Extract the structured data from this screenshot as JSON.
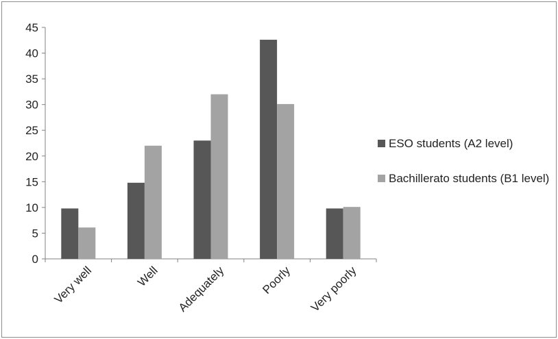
{
  "chart_data": {
    "type": "bar",
    "categories": [
      "Very well",
      "Well",
      "Adequately",
      "Poorly",
      "Very poorly"
    ],
    "series": [
      {
        "name": "ESO students (A2 level)",
        "values": [
          9.8,
          14.8,
          23,
          42.6,
          9.8
        ],
        "color": "#575757"
      },
      {
        "name": "Bachillerato students (B1 level)",
        "values": [
          6.1,
          22,
          32,
          30.1,
          10.1
        ],
        "color": "#a3a3a3"
      }
    ],
    "ylim": [
      0,
      45
    ],
    "yticks": [
      "0",
      "5",
      "10",
      "15",
      "20",
      "25",
      "30",
      "35",
      "40",
      "45"
    ],
    "title": "",
    "xlabel": "",
    "ylabel": "",
    "grid": false,
    "legend_position": "right"
  }
}
